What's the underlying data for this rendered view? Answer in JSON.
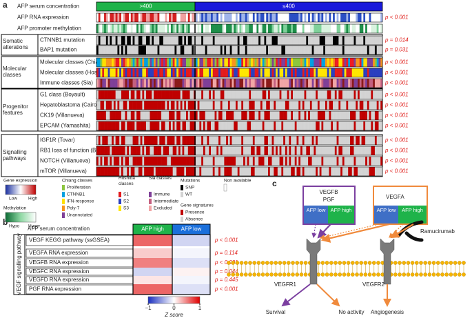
{
  "panel_a": {
    "label": "a",
    "groups": [
      ">400",
      "≤400"
    ],
    "group_colors": [
      "#1fb34a",
      "#1a1adb"
    ],
    "blocks": [
      {
        "rows": [
          {
            "label": "AFP serum concentration"
          },
          {
            "label": "AFP RNA expression",
            "p": "p < 0.001",
            "colors": [
              "#2a4fc4",
              "#9fb4ea",
              "#ffffff",
              "#f0a0a0",
              "#d42020"
            ]
          },
          {
            "label": "AFP promoter methylation",
            "colors": [
              "#1e8f4a",
              "#7fd19a",
              "#d9f2df",
              "#ffffff"
            ]
          }
        ]
      },
      {
        "section": "Somatic alterations",
        "rows": [
          {
            "label": "CTNNB1 mutation",
            "p": "p = 0.014",
            "colors": [
              "#000000",
              "#d3d3d3"
            ]
          },
          {
            "label": "BAP1 mutation",
            "p": "p = 0.031",
            "colors": [
              "#000000",
              "#d3d3d3"
            ]
          }
        ]
      },
      {
        "section": "Molecular classes",
        "rows": [
          {
            "label": "Molecular classes (Chiang)",
            "p": "p < 0.001",
            "colors": [
              "#8cc63f",
              "#00a0e0",
              "#ffe000",
              "#f7941d",
              "#7f3f98",
              "#ed1c24"
            ]
          },
          {
            "label": "Molecular classes (Hoshida)",
            "p": "p < 0.001",
            "colors": [
              "#e31a1c",
              "#2b3fbf",
              "#ffe600"
            ]
          },
          {
            "label": "Immune classes (Sia)",
            "p": "p < 0.001",
            "colors": [
              "#7f3f98",
              "#c46080",
              "#f2a6a6",
              "#8b1a1a"
            ]
          }
        ]
      },
      {
        "section": "Progenitor features",
        "rows": [
          {
            "label": "G1 class (Boyault)",
            "p": "p < 0.001",
            "colors": [
              "#c00000",
              "#d3d3d3"
            ]
          },
          {
            "label": "Hepatoblastoma (Cairo)",
            "p": "p < 0.001",
            "colors": [
              "#c00000",
              "#d3d3d3"
            ]
          },
          {
            "label": "CK19 (Villanueva)",
            "p": "p < 0.001",
            "colors": [
              "#c00000",
              "#d3d3d3"
            ]
          },
          {
            "label": "EPCAM (Yamashita)",
            "p": "p < 0.001",
            "colors": [
              "#c00000",
              "#d3d3d3"
            ]
          }
        ]
      },
      {
        "section": "Signalling pathways",
        "rows": [
          {
            "label": "IGF1R (Tovar)",
            "p": "p < 0.001",
            "colors": [
              "#c00000",
              "#d3d3d3"
            ]
          },
          {
            "label": "RB1 loss of function (Bollard)",
            "p": "p < 0.001",
            "colors": [
              "#c00000",
              "#d3d3d3"
            ]
          },
          {
            "label": "NOTCH (Villanueva)",
            "p": "p < 0.001",
            "colors": [
              "#c00000",
              "#d3d3d3"
            ]
          },
          {
            "label": "mTOR (Villanueva)",
            "p": "p < 0.001",
            "colors": [
              "#c00000",
              "#d3d3d3"
            ]
          }
        ]
      }
    ],
    "legend": [
      {
        "title": "Gene expression",
        "items": [
          "Low",
          "High"
        ]
      },
      {
        "title": "Methylation",
        "items": [
          "Hypo",
          "Hyper"
        ]
      },
      {
        "title": "Chiang classes",
        "items": [
          "Proliferation",
          "CTNNB1",
          "IFN-response",
          "Poly-7",
          "Unannotated"
        ],
        "colors": [
          "#8cc63f",
          "#00a0e0",
          "#ffe000",
          "#f7941d",
          "#7f3f98"
        ]
      },
      {
        "title": "Hoshida classes",
        "items": [
          "S1",
          "S2",
          "S3"
        ],
        "colors": [
          "#e31a1c",
          "#2b3fbf",
          "#ffe600"
        ]
      },
      {
        "title": "Sia classes",
        "items": [
          "Immune",
          "Intermediate",
          "Excluded"
        ],
        "colors": [
          "#7f3f98",
          "#c46080",
          "#f2a6a6"
        ]
      },
      {
        "title": "Mutations",
        "items": [
          "SNP",
          "WT"
        ],
        "colors": [
          "#000000",
          "#d3d3d3"
        ]
      },
      {
        "title": "Non available"
      },
      {
        "title": "Gene signatures",
        "items": [
          "Presence",
          "Absence"
        ],
        "colors": [
          "#c00000",
          "#d3d3d3"
        ]
      }
    ]
  },
  "panel_b": {
    "label": "b",
    "header": "AFP serum concentration",
    "columns": [
      "AFP high",
      "AFP low"
    ],
    "column_colors": [
      "#1fb34a",
      "#1a6fdb"
    ],
    "section": "VEGF signalling pathway",
    "rows": [
      {
        "label": "VEGF KEGG pathway (ssGSEA)",
        "p": "p < 0.001",
        "values": [
          0.6,
          -0.2
        ]
      },
      {
        "label": "VEGFA RNA expression",
        "p": "p = 0.114",
        "values": [
          0.2,
          -0.05
        ]
      },
      {
        "label": "VEGFB RNA expression",
        "p": "p < 0.001",
        "values": [
          0.5,
          -0.15
        ]
      },
      {
        "label": "VEGFC RNA expression",
        "p": "p = 0.044",
        "values": [
          -0.2,
          0.05
        ]
      },
      {
        "label": "VEGFD RNA expression",
        "p": "p = 0.445",
        "values": [
          0.1,
          -0.05
        ]
      },
      {
        "label": "PGF RNA expression",
        "p": "p < 0.001",
        "values": [
          0.6,
          -0.15
        ]
      }
    ],
    "zlim": [
      -1,
      1
    ],
    "zticks": [
      {
        "value": -1,
        "label": "−1"
      },
      0,
      1
    ],
    "colorbar_title": "Z score"
  },
  "panel_c": {
    "label": "c",
    "ligand1": [
      "VEGFB",
      "PGF"
    ],
    "ligand2": "VEGFA",
    "afp": [
      "AFP low",
      "AFP high"
    ],
    "drug": "Ramucirumab",
    "receptors": [
      "VEGFR1",
      "VEGFR2"
    ],
    "outcomes": [
      "Survival",
      "No activity",
      "Angiogenesis"
    ]
  }
}
